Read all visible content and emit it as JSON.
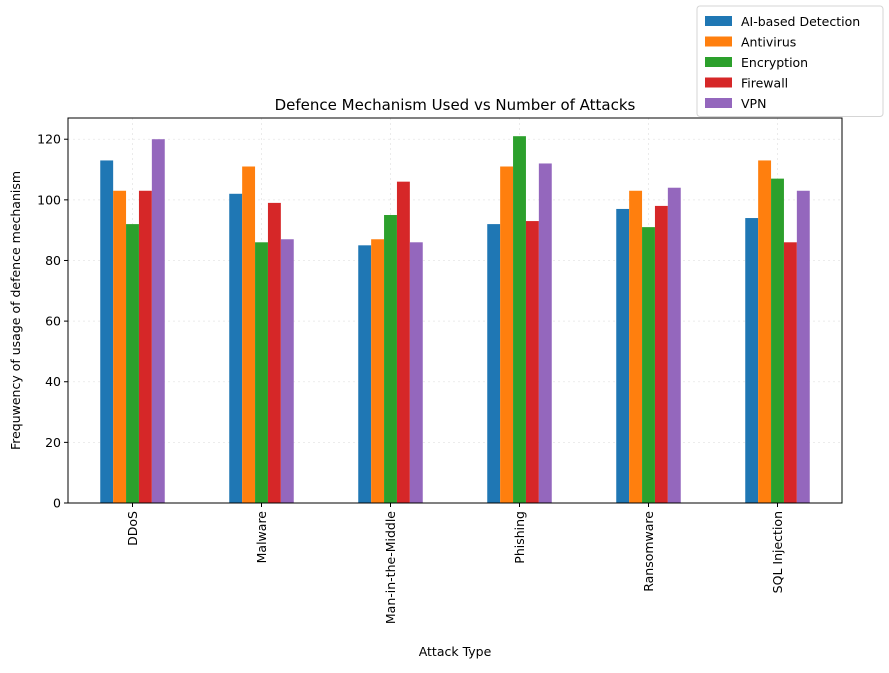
{
  "chart_data": {
    "type": "bar",
    "title": "Defence Mechanism Used vs Number of Attacks",
    "xlabel": "Attack Type",
    "ylabel": "Frequwency of usage of defence mechanism",
    "categories": [
      "DDoS",
      "Malware",
      "Man-in-the-Middle",
      "Phishing",
      "Ransomware",
      "SQL Injection"
    ],
    "series": [
      {
        "name": "AI-based Detection",
        "color": "#1f77b4",
        "values": [
          113,
          102,
          85,
          92,
          97,
          94
        ]
      },
      {
        "name": "Antivirus",
        "color": "#ff7f0e",
        "values": [
          103,
          111,
          87,
          111,
          103,
          113
        ]
      },
      {
        "name": "Encryption",
        "color": "#2ca02c",
        "values": [
          92,
          86,
          95,
          121,
          91,
          107
        ]
      },
      {
        "name": "Firewall",
        "color": "#d62728",
        "values": [
          103,
          99,
          106,
          93,
          98,
          86
        ]
      },
      {
        "name": "VPN",
        "color": "#9467bd",
        "values": [
          120,
          87,
          86,
          112,
          104,
          103
        ]
      }
    ],
    "ylim": [
      0,
      127
    ],
    "yticks": [
      0,
      20,
      40,
      60,
      80,
      100,
      120
    ],
    "grid": true,
    "legend_position": "top-right, outside axes"
  }
}
